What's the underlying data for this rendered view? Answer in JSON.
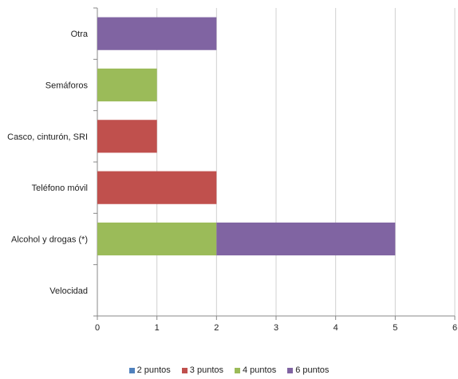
{
  "chart_data": {
    "type": "bar",
    "orientation": "horizontal",
    "stacked": true,
    "categories": [
      "Otra",
      "Semáforos",
      "Casco, cinturón, SRI",
      "Teléfono móvil",
      "Alcohol y drogas (*)",
      "Velocidad"
    ],
    "series": [
      {
        "name": "2 puntos",
        "color": "#4f81bd",
        "values": [
          0,
          0,
          0,
          0,
          0,
          0
        ]
      },
      {
        "name": "3 puntos",
        "color": "#c0504d",
        "values": [
          0,
          0,
          1,
          2,
          0,
          0
        ]
      },
      {
        "name": "4 puntos",
        "color": "#9bbb59",
        "values": [
          0,
          1,
          0,
          0,
          2,
          0
        ]
      },
      {
        "name": "6 puntos",
        "color": "#8064a2",
        "values": [
          2,
          0,
          0,
          0,
          3,
          0
        ]
      }
    ],
    "x_ticks": [
      "0",
      "1",
      "2",
      "3",
      "4",
      "5",
      "6"
    ],
    "xlim": [
      0,
      6
    ],
    "grid": "vertical",
    "legend_position": "bottom"
  }
}
